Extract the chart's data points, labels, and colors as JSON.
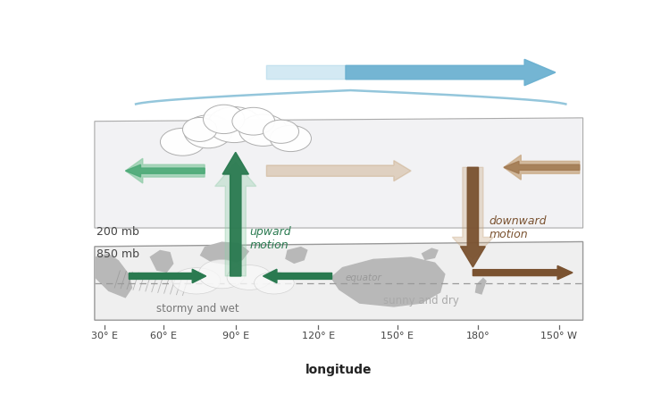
{
  "bg_color": "#ffffff",
  "title": "longitude",
  "x_tick_labels": [
    "30° E",
    "60° E",
    "90° E",
    "120° E",
    "150° E",
    "180°",
    "150° W"
  ],
  "label_200mb": "200 mb",
  "label_850mb": "850 mb",
  "label_upward": "upward\nmotion",
  "label_downward": "downward\nmotion",
  "label_stormy": "stormy and wet",
  "label_sunny": "sunny and dry",
  "label_equator": "equator",
  "green_dark": "#2a7a50",
  "green_mid": "#4daa78",
  "green_light": "#90cca8",
  "brown_dark": "#7a5230",
  "brown_mid": "#a07850",
  "brown_light": "#c8a882",
  "blue_arrow": "#6ab0d0",
  "blue_light": "#a8d4e8",
  "blue_bracket": "#88c0d8",
  "land_color": "#b8b8b8",
  "plane_face": "#f2f2f4",
  "plane_edge": "#999999",
  "upper_face": "#eeeeee",
  "equator_color": "#999999",
  "text_color": "#444444"
}
